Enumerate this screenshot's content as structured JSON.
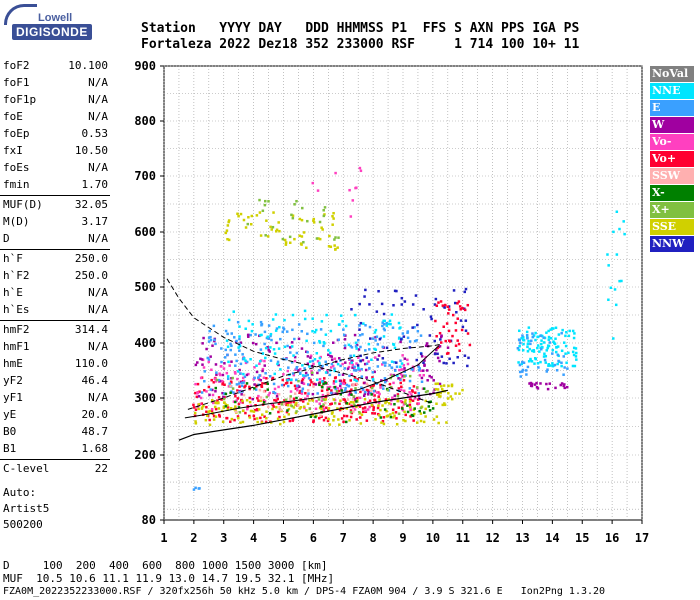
{
  "logo": {
    "top": "Lowell",
    "main": "DIGISONDE"
  },
  "header": {
    "line1": "Station   YYYY DAY   DDD HHMMSS P1  FFS S AXN PPS IGA PS",
    "line2": "Fortaleza 2022 Dez18 352 233000 RSF     1 714 100 10+ 11"
  },
  "params": [
    {
      "k": "foF2",
      "v": "10.100"
    },
    {
      "k": "foF1",
      "v": "N/A"
    },
    {
      "k": "foF1p",
      "v": "N/A"
    },
    {
      "k": "foE",
      "v": "N/A"
    },
    {
      "k": "foEp",
      "v": "0.53"
    },
    {
      "k": "fxI",
      "v": "10.50"
    },
    {
      "k": "foEs",
      "v": "N/A"
    },
    {
      "k": "fmin",
      "v": "1.70"
    },
    {
      "k": "MUF(D)",
      "v": "32.05"
    },
    {
      "k": "M(D)",
      "v": "3.17"
    },
    {
      "k": "D",
      "v": "N/A"
    },
    {
      "k": "h`F",
      "v": "250.0"
    },
    {
      "k": "h`F2",
      "v": "250.0"
    },
    {
      "k": "h`E",
      "v": "N/A"
    },
    {
      "k": "h`Es",
      "v": "N/A"
    },
    {
      "k": "hmF2",
      "v": "314.4"
    },
    {
      "k": "hmF1",
      "v": "N/A"
    },
    {
      "k": "hmE",
      "v": "110.0"
    },
    {
      "k": "yF2",
      "v": "46.4"
    },
    {
      "k": "yF1",
      "v": "N/A"
    },
    {
      "k": "yE",
      "v": "20.0"
    },
    {
      "k": "B0",
      "v": "48.7"
    },
    {
      "k": "B1",
      "v": "1.68"
    },
    {
      "k": "C-level",
      "v": "22"
    }
  ],
  "auto": {
    "line1": "Auto:",
    "line2": "Artist5",
    "line3": "500200"
  },
  "bottom": {
    "d_line": "D     100  200  400  600  800 1000 1500 3000 [km]",
    "muf_line": "MUF  10.5 10.6 11.1 11.9 13.0 14.7 19.5 32.1 [MHz]",
    "footer": "FZA0M_2022352233000.RSF / 320fx256h 50 kHz 5.0 km / DPS-4 FZA0M 904 / 3.9 S 321.6 E   Ion2Png 1.3.20"
  },
  "legend": [
    {
      "label": "NoVal",
      "color": "#808080"
    },
    {
      "label": "NNE",
      "color": "#00e5ff"
    },
    {
      "label": "E",
      "color": "#3aa0ff"
    },
    {
      "label": "W",
      "color": "#a000a0"
    },
    {
      "label": "Vo-",
      "color": "#ff40c0"
    },
    {
      "label": "Vo+",
      "color": "#ff0030"
    },
    {
      "label": "SSW",
      "color": "#ffb0b0"
    },
    {
      "label": "X-",
      "color": "#008000"
    },
    {
      "label": "X+",
      "color": "#80c040"
    },
    {
      "label": "SSE",
      "color": "#d0d000"
    },
    {
      "label": "NNW",
      "color": "#2020c0"
    }
  ],
  "chart_data": {
    "type": "scatter",
    "xlim": [
      1,
      17
    ],
    "ylim": [
      80,
      900
    ],
    "xticks": [
      "1",
      "2",
      "3",
      "4",
      "5",
      "6",
      "7",
      "8",
      "9",
      "10",
      "11",
      "12",
      "13",
      "14",
      "15",
      "16",
      "17"
    ],
    "yticks": [
      "80",
      "200",
      "300",
      "400",
      "500",
      "600",
      "700",
      "800",
      "900"
    ],
    "grid": true,
    "profile_curve": [
      [
        1.5,
        226
      ],
      [
        2,
        236
      ],
      [
        3,
        244
      ],
      [
        4,
        252
      ],
      [
        5,
        262
      ],
      [
        6,
        272
      ],
      [
        7,
        282
      ],
      [
        8,
        292
      ],
      [
        9,
        300
      ],
      [
        10,
        308
      ],
      [
        10.5,
        314
      ]
    ],
    "trace_lower": [
      [
        1.7,
        265
      ],
      [
        2.5,
        272
      ],
      [
        3.5,
        282
      ],
      [
        4.5,
        290
      ],
      [
        5.5,
        296
      ],
      [
        6.5,
        304
      ],
      [
        7.5,
        315
      ],
      [
        8.5,
        335
      ],
      [
        9.5,
        360
      ],
      [
        10.2,
        395
      ]
    ],
    "dashed_upper": [
      [
        1.1,
        515
      ],
      [
        1.5,
        480
      ],
      [
        2,
        445
      ],
      [
        3,
        410
      ],
      [
        4,
        385
      ],
      [
        5,
        370
      ],
      [
        6,
        358
      ],
      [
        7,
        345
      ],
      [
        8,
        330
      ],
      [
        9,
        310
      ],
      [
        10,
        290
      ]
    ],
    "dashed_lower": [
      [
        1.8,
        280
      ],
      [
        3,
        300
      ],
      [
        4,
        320
      ],
      [
        5,
        340
      ],
      [
        6,
        355
      ],
      [
        7,
        370
      ],
      [
        8,
        382
      ],
      [
        9,
        390
      ],
      [
        10,
        395
      ],
      [
        10.3,
        398
      ]
    ],
    "clusters": [
      {
        "color": "#ff0030",
        "x": [
          1.9,
          9.5
        ],
        "y": [
          260,
          340
        ],
        "n": 260
      },
      {
        "color": "#ff40c0",
        "x": [
          2.0,
          9.8
        ],
        "y": [
          280,
          380
        ],
        "n": 180
      },
      {
        "color": "#a000a0",
        "x": [
          2.0,
          10.5
        ],
        "y": [
          300,
          420
        ],
        "n": 160
      },
      {
        "color": "#3aa0ff",
        "x": [
          2.2,
          9.6
        ],
        "y": [
          310,
          440
        ],
        "n": 240
      },
      {
        "color": "#00e5ff",
        "x": [
          3.0,
          9.0
        ],
        "y": [
          330,
          460
        ],
        "n": 120
      },
      {
        "color": "#d0d000",
        "x": [
          2.0,
          10.5
        ],
        "y": [
          255,
          300
        ],
        "n": 160
      },
      {
        "color": "#2020c0",
        "x": [
          7.2,
          11.2
        ],
        "y": [
          360,
          500
        ],
        "n": 70
      },
      {
        "color": "#008000",
        "x": [
          2.5,
          10.0
        ],
        "y": [
          260,
          330
        ],
        "n": 50
      },
      {
        "color": "#80c040",
        "x": [
          2.5,
          10.0
        ],
        "y": [
          270,
          350
        ],
        "n": 40
      },
      {
        "color": "#ffb0b0",
        "x": [
          3.0,
          8.0
        ],
        "y": [
          270,
          330
        ],
        "n": 30
      },
      {
        "color": "#d0d000",
        "x": [
          3.0,
          6.8
        ],
        "y": [
          570,
          640
        ],
        "n": 60
      },
      {
        "color": "#80c040",
        "x": [
          3.5,
          6.8
        ],
        "y": [
          580,
          660
        ],
        "n": 25
      },
      {
        "color": "#ff40c0",
        "x": [
          5.5,
          8.5
        ],
        "y": [
          600,
          720
        ],
        "n": 10
      },
      {
        "color": "#00e5ff",
        "x": [
          12.8,
          14.8
        ],
        "y": [
          360,
          430
        ],
        "n": 110
      },
      {
        "color": "#3aa0ff",
        "x": [
          12.8,
          14.5
        ],
        "y": [
          340,
          420
        ],
        "n": 40
      },
      {
        "color": "#a000a0",
        "x": [
          13.0,
          14.5
        ],
        "y": [
          318,
          330
        ],
        "n": 20
      },
      {
        "color": "#d0d000",
        "x": [
          10.0,
          11.0
        ],
        "y": [
          300,
          330
        ],
        "n": 25
      },
      {
        "color": "#ff0030",
        "x": [
          10.0,
          11.2
        ],
        "y": [
          380,
          480
        ],
        "n": 40
      },
      {
        "color": "#00e5ff",
        "x": [
          15.8,
          16.4
        ],
        "y": [
          400,
          640
        ],
        "n": 15
      },
      {
        "color": "#3aa0ff",
        "x": [
          1.9,
          2.3
        ],
        "y": [
          138,
          142
        ],
        "n": 4
      }
    ]
  }
}
